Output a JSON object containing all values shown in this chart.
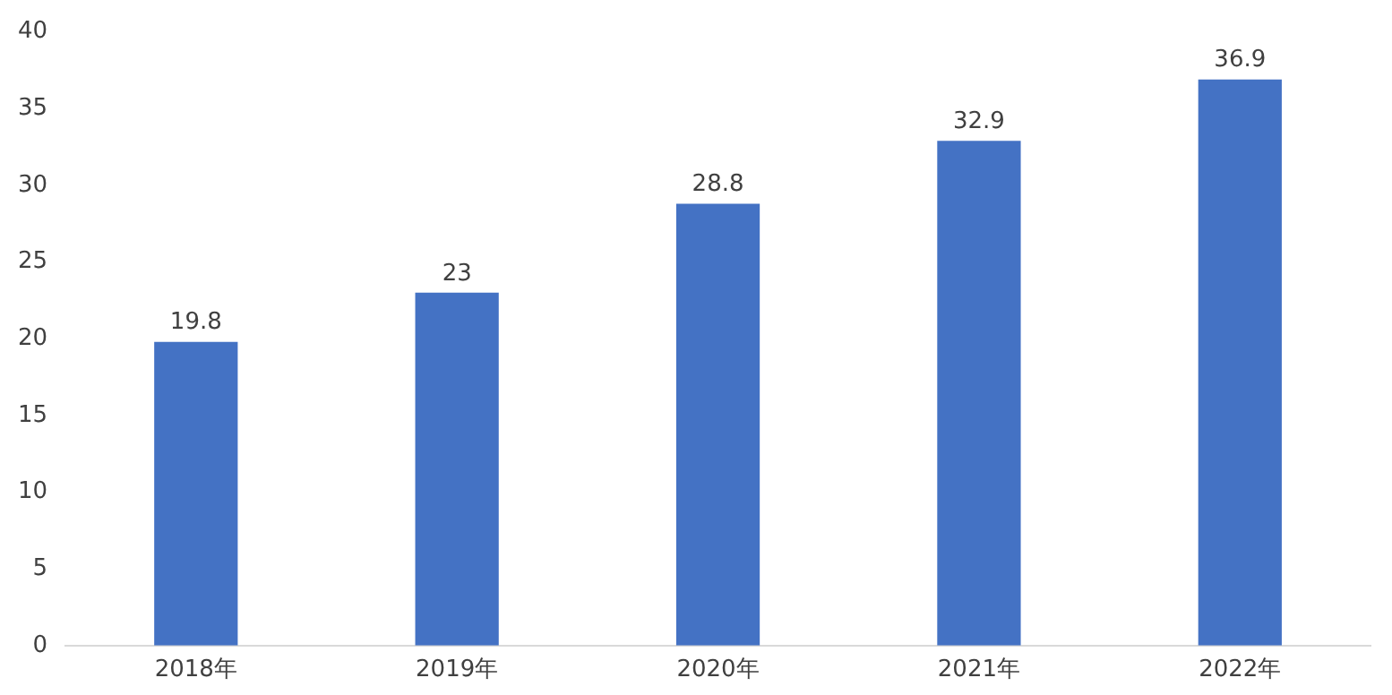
{
  "chart_data": {
    "type": "bar",
    "categories": [
      "2018年",
      "2019年",
      "2020年",
      "2021年",
      "2022年"
    ],
    "values": [
      19.8,
      23,
      28.8,
      32.9,
      36.9
    ],
    "color": "#4472c4",
    "ylim": [
      0,
      40
    ],
    "yticks": [
      0,
      5,
      10,
      15,
      20,
      25,
      30,
      35,
      40
    ],
    "grid": false,
    "legend": false,
    "data_labels": true
  }
}
